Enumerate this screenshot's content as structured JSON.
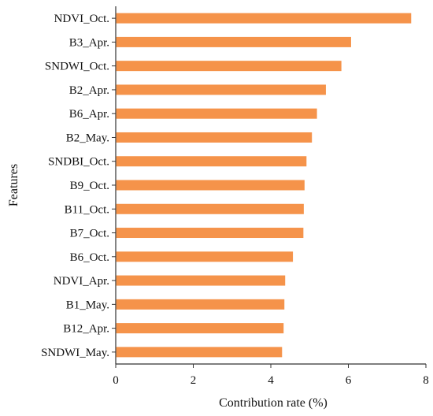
{
  "chart_data": {
    "type": "bar",
    "orientation": "horizontal",
    "categories": [
      "NDVI_Oct.",
      "B3_Apr.",
      "SNDWI_Oct.",
      "B2_Apr.",
      "B6_Apr.",
      "B2_May.",
      "SNDBI_Oct.",
      "B9_Oct.",
      "B11_Oct.",
      "B7_Oct.",
      "B6_Oct.",
      "NDVI_Apr.",
      "B1_May.",
      "B12_Apr.",
      "SNDWI_May."
    ],
    "values": [
      7.62,
      6.07,
      5.82,
      5.42,
      5.19,
      5.06,
      4.92,
      4.87,
      4.85,
      4.84,
      4.57,
      4.37,
      4.35,
      4.33,
      4.29
    ],
    "xlabel": "Contribution rate (%)",
    "ylabel": "Features",
    "xlim": [
      0,
      8
    ],
    "xticks": [
      "0",
      "2",
      "4",
      "6",
      "8"
    ],
    "grid": false,
    "bar_color": "#f5934a"
  }
}
